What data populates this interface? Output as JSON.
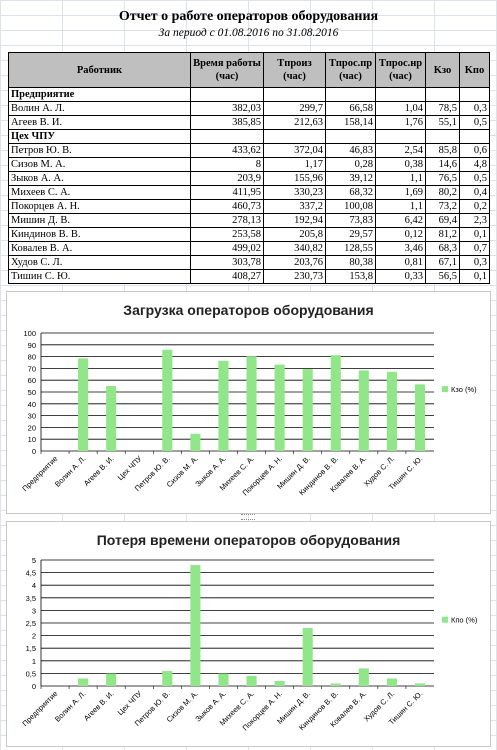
{
  "report": {
    "title": "Отчет о работе операторов оборудования",
    "subtitle": "За период с 01.08.2016 по 31.08.2016",
    "headers": [
      "Работник",
      "Время работы (час)",
      "Tпроиз (час)",
      "Tпрос.пр (час)",
      "Tпрос.нр (час)",
      "Kзо",
      "Kпо"
    ],
    "rows": [
      {
        "type": "section",
        "name": "Предприятие"
      },
      {
        "name": "Волин А. Л.",
        "t_work": "382,03",
        "t_prod": "299,7",
        "t_pr": "66,58",
        "t_nr": "1,04",
        "kzo": "78,5",
        "kpo": "0,3"
      },
      {
        "name": "Агеев В. И.",
        "t_work": "385,85",
        "t_prod": "212,63",
        "t_pr": "158,14",
        "t_nr": "1,76",
        "kzo": "55,1",
        "kpo": "0,5"
      },
      {
        "type": "section",
        "name": "Цех ЧПУ"
      },
      {
        "name": "Петров Ю. В.",
        "t_work": "433,62",
        "t_prod": "372,04",
        "t_pr": "46,83",
        "t_nr": "2,54",
        "kzo": "85,8",
        "kpo": "0,6"
      },
      {
        "name": "Сизов М. А.",
        "t_work": "8",
        "t_prod": "1,17",
        "t_pr": "0,28",
        "t_nr": "0,38",
        "kzo": "14,6",
        "kpo": "4,8"
      },
      {
        "name": "Зыков А. А.",
        "t_work": "203,9",
        "t_prod": "155,96",
        "t_pr": "39,12",
        "t_nr": "1,1",
        "kzo": "76,5",
        "kpo": "0,5"
      },
      {
        "name": "Михеев С. А.",
        "t_work": "411,95",
        "t_prod": "330,23",
        "t_pr": "68,32",
        "t_nr": "1,69",
        "kzo": "80,2",
        "kpo": "0,4"
      },
      {
        "name": "Покорцев А. Н.",
        "t_work": "460,73",
        "t_prod": "337,2",
        "t_pr": "100,08",
        "t_nr": "1,1",
        "kzo": "73,2",
        "kpo": "0,2"
      },
      {
        "name": "Мишин Д. В.",
        "t_work": "278,13",
        "t_prod": "192,94",
        "t_pr": "73,83",
        "t_nr": "6,42",
        "kzo": "69,4",
        "kpo": "2,3"
      },
      {
        "name": "Киндинов В. В.",
        "t_work": "253,58",
        "t_prod": "205,8",
        "t_pr": "29,57",
        "t_nr": "0,12",
        "kzo": "81,2",
        "kpo": "0,1"
      },
      {
        "name": "Ковалев В. А.",
        "t_work": "499,02",
        "t_prod": "340,82",
        "t_pr": "128,55",
        "t_nr": "3,46",
        "kzo": "68,3",
        "kpo": "0,7"
      },
      {
        "name": "Худов С. Л.",
        "t_work": "303,78",
        "t_prod": "203,76",
        "t_pr": "80,38",
        "t_nr": "0,81",
        "kzo": "67,1",
        "kpo": "0,3"
      },
      {
        "name": "Тишин С. Ю.",
        "t_work": "408,27",
        "t_prod": "230,73",
        "t_pr": "153,8",
        "t_nr": "0,33",
        "kzo": "56,5",
        "kpo": "0,1"
      }
    ]
  },
  "chart_data": [
    {
      "type": "bar",
      "title": "Загрузка операторов оборудования",
      "categories": [
        "Предприятие",
        "Волин А. Л.",
        "Агеев В. И.",
        "Цех ЧПУ",
        "Петров Ю. В.",
        "Сизов М. А.",
        "Зыков А. А.",
        "Михеев С. А.",
        "Покорцев А. Н.",
        "Мишин Д. В.",
        "Киндинов В. В.",
        "Ковалев В. А.",
        "Худов С. Л.",
        "Тишин С. Ю."
      ],
      "series": [
        {
          "name": "Кзо (%)",
          "values": [
            null,
            78.5,
            55.1,
            null,
            85.8,
            14.6,
            76.5,
            80.2,
            73.2,
            69.4,
            81.2,
            68.3,
            67.1,
            56.5
          ]
        }
      ],
      "ylim": [
        0,
        100
      ],
      "yticks": [
        "0",
        "10",
        "20",
        "30",
        "40",
        "50",
        "60",
        "70",
        "80",
        "90",
        "100"
      ],
      "ytick_values": [
        0,
        10,
        20,
        30,
        40,
        50,
        60,
        70,
        80,
        90,
        100
      ],
      "grid": true,
      "legend": "right",
      "color": "#92e68a"
    },
    {
      "type": "bar",
      "title": "Потеря времени операторов оборудования",
      "categories": [
        "Предприятие",
        "Волин А. Л.",
        "Агеев В. И.",
        "Цех ЧПУ",
        "Петров Ю. В.",
        "Сизов М. А.",
        "Зыков А. А.",
        "Михеев С. А.",
        "Покорцев А. Н.",
        "Мишин Д. В.",
        "Киндинов В. В.",
        "Ковалев В. А.",
        "Худов С. Л.",
        "Тишин С. Ю."
      ],
      "series": [
        {
          "name": "Кпо (%)",
          "values": [
            null,
            0.3,
            0.5,
            null,
            0.6,
            4.8,
            0.5,
            0.4,
            0.2,
            2.3,
            0.1,
            0.7,
            0.3,
            0.1
          ]
        }
      ],
      "ylim": [
        0,
        5
      ],
      "yticks": [
        "0",
        "0,5",
        "1",
        "1,5",
        "2",
        "2,5",
        "3",
        "3,5",
        "4",
        "4,5",
        "5"
      ],
      "ytick_values": [
        0,
        0.5,
        1,
        1.5,
        2,
        2.5,
        3,
        3.5,
        4,
        4.5,
        5
      ],
      "grid": true,
      "legend": "right",
      "color": "#92e68a"
    }
  ]
}
